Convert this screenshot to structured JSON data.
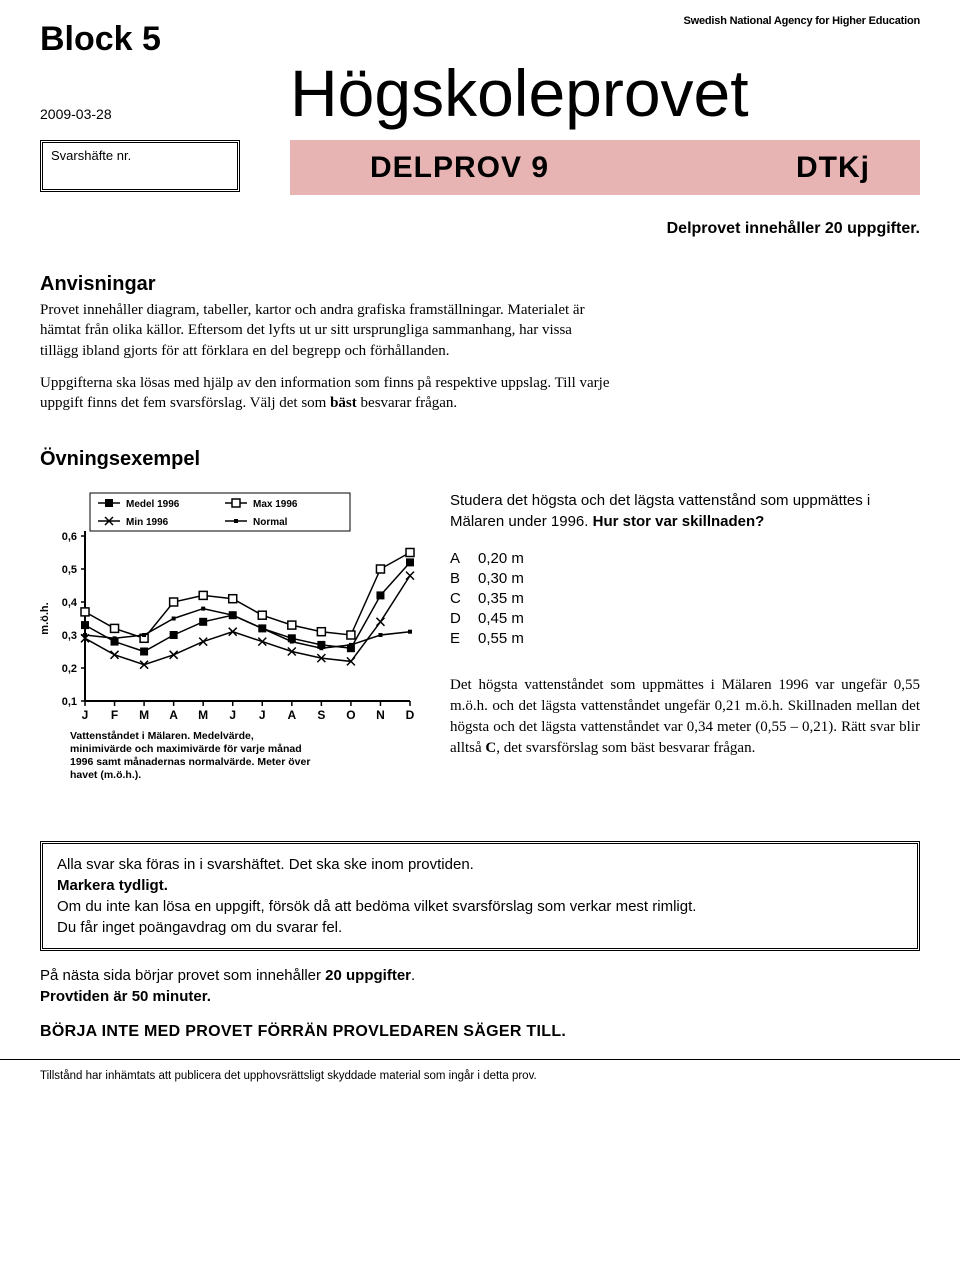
{
  "header": {
    "block": "Block 5",
    "date": "2009-03-28",
    "svars_label": "Svarshäfte nr.",
    "agency": "Swedish National Agency for Higher Education",
    "main_title": "Högskoleprovet",
    "delprov_left": "DELPROV 9",
    "delprov_right": "DTKj",
    "banner_bg": "#e8b3b3",
    "subheader": "Delprovet innehåller 20 uppgifter."
  },
  "anvisningar": {
    "heading": "Anvisningar",
    "para1": "Provet innehåller diagram, tabeller, kartor och andra grafiska framställningar. Materialet är hämtat från olika källor. Eftersom det lyfts ut ur sitt ursprungliga sammanhang, har vissa tillägg ibland gjorts för att förklara en del begrepp och förhållanden.",
    "para2_a": "Uppgifterna ska lösas med hjälp av den information som finns på respektive uppslag. Till varje uppgift finns det fem svarsförslag. Välj det som ",
    "para2_b": "bäst",
    "para2_c": " besvarar frågan."
  },
  "ovning": {
    "heading": "Övningsexempel",
    "question_a": "Studera det högsta och det lägsta vattenstånd som uppmättes i Mälaren under 1996. ",
    "question_b": "Hur stor var skillnaden?",
    "options": [
      {
        "letter": "A",
        "value": "0,20 m"
      },
      {
        "letter": "B",
        "value": "0,30 m"
      },
      {
        "letter": "C",
        "value": "0,35 m"
      },
      {
        "letter": "D",
        "value": "0,45 m"
      },
      {
        "letter": "E",
        "value": "0,55 m"
      }
    ],
    "explain_a": "Det högsta vattenståndet som uppmättes i Mälaren 1996 var ungefär 0,55 m.ö.h. och det lägsta vattenståndet ungefär 0,21 m.ö.h. Skillnaden mellan det högsta och det lägsta vattenståndet var 0,34 meter (0,55 – 0,21). Rätt svar blir alltså ",
    "explain_b": "C",
    "explain_c": ", det svarsförslag som bäst besvarar frågan."
  },
  "chart": {
    "legend": {
      "medel": "Medel 1996",
      "max": "Max 1996",
      "min": "Min 1996",
      "normal": "Normal"
    },
    "ylabel": "m.ö.h.",
    "yticks": [
      "0,1",
      "0,2",
      "0,3",
      "0,4",
      "0,5",
      "0,6"
    ],
    "ylim": [
      0.1,
      0.6
    ],
    "xticks": [
      "J",
      "F",
      "M",
      "A",
      "M",
      "J",
      "J",
      "A",
      "S",
      "O",
      "N",
      "D"
    ],
    "caption": "Vattenståndet i Mälaren. Medelvärde, minimivärde och maximivärde för varje månad 1996 samt månadernas normalvärde. Meter över havet (m.ö.h.).",
    "colors": {
      "axis": "#000000",
      "line": "#000000",
      "bg": "#ffffff"
    },
    "line_width": 1.5,
    "marker_size": 4,
    "series": {
      "medel": [
        0.33,
        0.28,
        0.25,
        0.3,
        0.34,
        0.36,
        0.32,
        0.29,
        0.27,
        0.26,
        0.42,
        0.52
      ],
      "max": [
        0.37,
        0.32,
        0.29,
        0.4,
        0.42,
        0.41,
        0.36,
        0.33,
        0.31,
        0.3,
        0.5,
        0.55
      ],
      "min": [
        0.29,
        0.24,
        0.21,
        0.24,
        0.28,
        0.31,
        0.28,
        0.25,
        0.23,
        0.22,
        0.34,
        0.48
      ],
      "normal": [
        0.3,
        0.29,
        0.3,
        0.35,
        0.38,
        0.36,
        0.32,
        0.28,
        0.26,
        0.27,
        0.3,
        0.31
      ]
    },
    "markers": {
      "medel": "square-filled",
      "max": "square-open",
      "min": "x",
      "normal": "square-tiny"
    }
  },
  "infobox": {
    "line1": "Alla svar ska föras in i svarshäftet. Det ska ske inom provtiden.",
    "line2": "Markera tydligt.",
    "line3": "Om du inte kan lösa en uppgift, försök då att bedöma vilket svarsförslag som verkar mest rimligt.",
    "line4": "Du får inget poängavdrag om du svarar fel."
  },
  "afterbox": {
    "line1_a": "På nästa sida börjar provet som innehåller ",
    "line1_b": "20 uppgifter",
    "line1_c": ".",
    "line2_a": "Provtiden är 50 minuter.",
    "start": "BÖRJA INTE MED PROVET FÖRRÄN PROVLEDAREN SÄGER TILL."
  },
  "footer": "Tillstånd har inhämtats att publicera det upphovsrättsligt skyddade material som ingår i detta prov."
}
